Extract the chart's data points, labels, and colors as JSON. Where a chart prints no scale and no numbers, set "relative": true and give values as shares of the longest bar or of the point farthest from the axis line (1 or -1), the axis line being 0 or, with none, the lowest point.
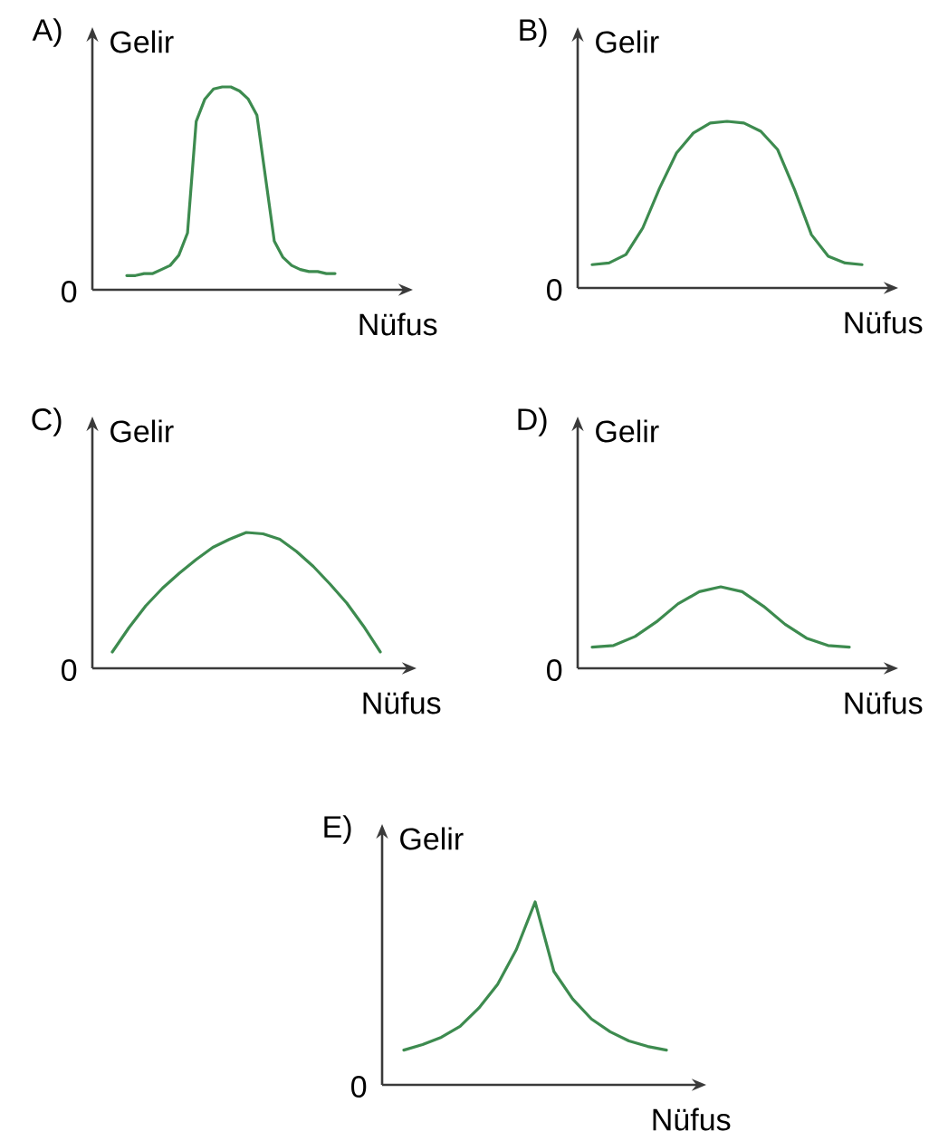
{
  "chart_data": [
    {
      "type": "line",
      "title": "A)",
      "xlabel": "Nüfus",
      "ylabel": "Gelir",
      "annotations": [
        "0"
      ],
      "relative": true,
      "categories": [
        null,
        null,
        null,
        null,
        null,
        null,
        null,
        null,
        null,
        null,
        null,
        null,
        null,
        null,
        null,
        null,
        null,
        null,
        null,
        null,
        null,
        null,
        null,
        null,
        null
      ],
      "series": [
        {
          "color": "#3d8b4f",
          "values": [
            0.07,
            0.07,
            0.08,
            0.08,
            0.1,
            0.12,
            0.17,
            0.28,
            0.83,
            0.94,
            0.99,
            1.0,
            1.0,
            0.98,
            0.94,
            0.86,
            0.55,
            0.24,
            0.16,
            0.12,
            0.1,
            0.09,
            0.09,
            0.08,
            0.08
          ]
        }
      ]
    },
    {
      "type": "line",
      "title": "B)",
      "xlabel": "Nüfus",
      "ylabel": "Gelir",
      "annotations": [
        "0"
      ],
      "relative": true,
      "categories": [
        null,
        null,
        null,
        null,
        null,
        null,
        null,
        null,
        null,
        null,
        null,
        null,
        null,
        null,
        null,
        null,
        null
      ],
      "series": [
        {
          "color": "#3d8b4f",
          "values": [
            0.14,
            0.15,
            0.2,
            0.36,
            0.6,
            0.81,
            0.93,
            0.99,
            1.0,
            0.99,
            0.94,
            0.83,
            0.59,
            0.32,
            0.19,
            0.15,
            0.14
          ]
        }
      ]
    },
    {
      "type": "line",
      "title": "C)",
      "xlabel": "Nüfus",
      "ylabel": "Gelir",
      "annotations": [
        "0"
      ],
      "relative": true,
      "categories": [
        null,
        null,
        null,
        null,
        null,
        null,
        null,
        null,
        null,
        null,
        null,
        null,
        null,
        null,
        null,
        null,
        null
      ],
      "series": [
        {
          "color": "#3d8b4f",
          "values": [
            0.12,
            0.3,
            0.46,
            0.59,
            0.7,
            0.8,
            0.89,
            0.95,
            1.0,
            0.99,
            0.95,
            0.86,
            0.75,
            0.62,
            0.48,
            0.31,
            0.12
          ]
        }
      ]
    },
    {
      "type": "line",
      "title": "D)",
      "xlabel": "Nüfus",
      "ylabel": "Gelir",
      "annotations": [
        "0"
      ],
      "relative": true,
      "categories": [
        null,
        null,
        null,
        null,
        null,
        null,
        null,
        null,
        null,
        null,
        null,
        null,
        null
      ],
      "series": [
        {
          "color": "#3d8b4f",
          "values": [
            0.26,
            0.28,
            0.39,
            0.57,
            0.79,
            0.94,
            1.0,
            0.94,
            0.76,
            0.54,
            0.37,
            0.28,
            0.26
          ]
        }
      ]
    },
    {
      "type": "line",
      "title": "E)",
      "xlabel": "Nüfus",
      "ylabel": "Gelir",
      "annotations": [
        "0"
      ],
      "relative": true,
      "categories": [
        null,
        null,
        null,
        null,
        null,
        null,
        null,
        null,
        null,
        null,
        null,
        null,
        null,
        null,
        null
      ],
      "series": [
        {
          "color": "#3d8b4f",
          "values": [
            0.19,
            0.22,
            0.26,
            0.32,
            0.42,
            0.55,
            0.74,
            1.0,
            0.62,
            0.47,
            0.36,
            0.29,
            0.24,
            0.21,
            0.19
          ]
        }
      ]
    }
  ]
}
